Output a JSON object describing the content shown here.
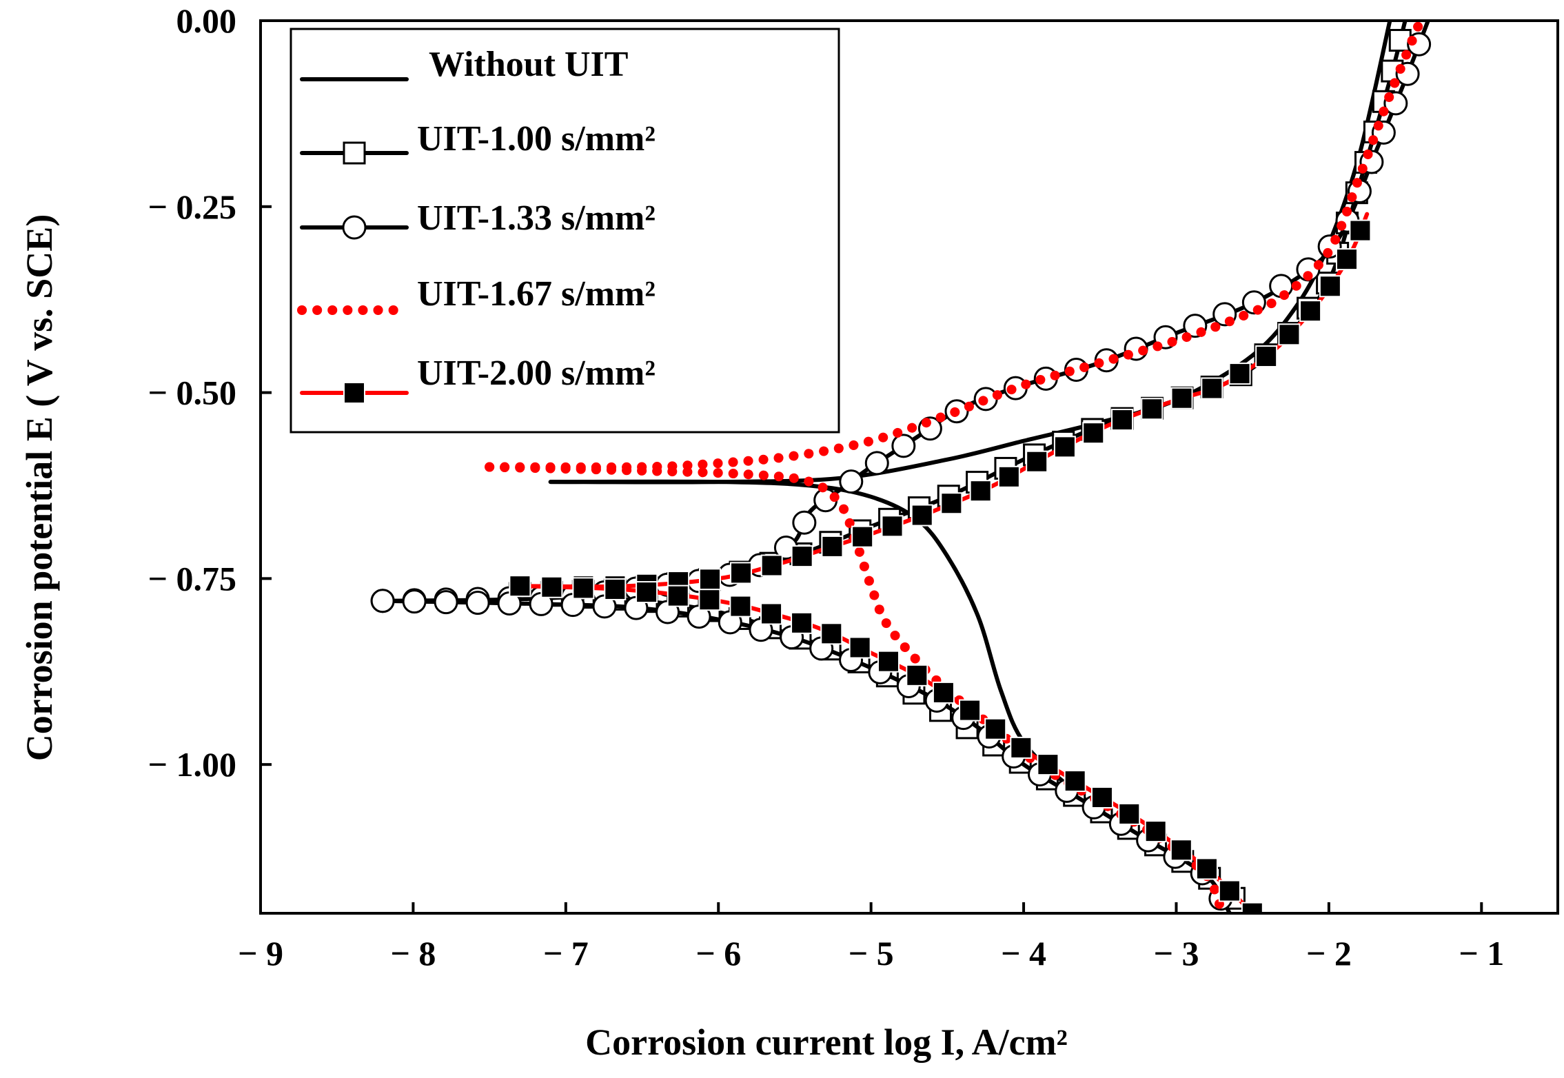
{
  "chart_data": {
    "type": "line",
    "title": "",
    "xlabel": "Corrosion current log I, A/cm²",
    "ylabel": "Corrosion potential E ( V vs. SCE)",
    "xlim": [
      -9,
      -0.5
    ],
    "ylim": [
      -1.2,
      0.0
    ],
    "grid": false,
    "legend_position": "top-left",
    "x_ticks": [
      -9,
      -8,
      -7,
      -6,
      -5,
      -4,
      -3,
      -2,
      -1
    ],
    "x_tick_labels": [
      "− 9",
      "− 8",
      "− 7",
      "− 6",
      "− 5",
      "− 4",
      "− 3",
      "− 2",
      "− 1"
    ],
    "y_ticks": [
      0.0,
      -0.25,
      -0.5,
      -0.75,
      -1.0
    ],
    "y_tick_labels": [
      "0.00",
      "− 0.25",
      "− 0.50",
      "− 0.75",
      "− 1.00"
    ],
    "series": [
      {
        "name": "Without UIT",
        "color": "#000000",
        "line_style": "solid",
        "marker": "none",
        "anodic": [
          [
            -7.1,
            -0.62
          ],
          [
            -6.0,
            -0.62
          ],
          [
            -5.2,
            -0.615
          ],
          [
            -4.5,
            -0.59
          ],
          [
            -4.0,
            -0.565
          ],
          [
            -3.5,
            -0.54
          ],
          [
            -3.0,
            -0.51
          ],
          [
            -2.5,
            -0.45
          ],
          [
            -2.2,
            -0.38
          ],
          [
            -2.0,
            -0.3
          ],
          [
            -1.8,
            -0.18
          ],
          [
            -1.6,
            0.0
          ]
        ],
        "cathodic": [
          [
            -7.1,
            -0.62
          ],
          [
            -6.0,
            -0.62
          ],
          [
            -5.4,
            -0.625
          ],
          [
            -5.0,
            -0.64
          ],
          [
            -4.7,
            -0.67
          ],
          [
            -4.5,
            -0.72
          ],
          [
            -4.3,
            -0.8
          ],
          [
            -4.15,
            -0.9
          ],
          [
            -4.0,
            -0.97
          ],
          [
            -3.7,
            -1.03
          ],
          [
            -3.3,
            -1.09
          ],
          [
            -2.8,
            -1.15
          ],
          [
            -2.5,
            -1.2
          ]
        ]
      },
      {
        "name": "UIT-1.00 s/mm²",
        "color": "#000000",
        "line_style": "solid",
        "marker": "open-square",
        "anodic": [
          [
            -7.3,
            -0.77
          ],
          [
            -6.6,
            -0.765
          ],
          [
            -6.0,
            -0.75
          ],
          [
            -5.5,
            -0.72
          ],
          [
            -5.0,
            -0.68
          ],
          [
            -4.5,
            -0.64
          ],
          [
            -4.0,
            -0.59
          ],
          [
            -3.5,
            -0.545
          ],
          [
            -3.0,
            -0.51
          ],
          [
            -2.6,
            -0.48
          ],
          [
            -2.3,
            -0.43
          ],
          [
            -2.0,
            -0.35
          ],
          [
            -1.8,
            -0.22
          ],
          [
            -1.6,
            -0.08
          ],
          [
            -1.5,
            0.0
          ]
        ],
        "cathodic": [
          [
            -7.3,
            -0.77
          ],
          [
            -6.5,
            -0.78
          ],
          [
            -6.0,
            -0.795
          ],
          [
            -5.6,
            -0.82
          ],
          [
            -5.2,
            -0.85
          ],
          [
            -4.9,
            -0.88
          ],
          [
            -4.6,
            -0.92
          ],
          [
            -4.3,
            -0.96
          ],
          [
            -4.0,
            -1.0
          ],
          [
            -3.6,
            -1.05
          ],
          [
            -3.2,
            -1.1
          ],
          [
            -2.8,
            -1.15
          ],
          [
            -2.5,
            -1.2
          ]
        ]
      },
      {
        "name": "UIT-1.33 s/mm²",
        "color": "#000000",
        "line_style": "solid",
        "marker": "open-circle",
        "anodic": [
          [
            -8.2,
            -0.78
          ],
          [
            -7.0,
            -0.775
          ],
          [
            -6.0,
            -0.75
          ],
          [
            -5.7,
            -0.73
          ],
          [
            -5.5,
            -0.7
          ],
          [
            -5.4,
            -0.66
          ],
          [
            -5.2,
            -0.63
          ],
          [
            -5.0,
            -0.6
          ],
          [
            -4.7,
            -0.56
          ],
          [
            -4.4,
            -0.52
          ],
          [
            -4.0,
            -0.49
          ],
          [
            -3.5,
            -0.46
          ],
          [
            -3.0,
            -0.42
          ],
          [
            -2.5,
            -0.38
          ],
          [
            -2.1,
            -0.33
          ],
          [
            -1.9,
            -0.28
          ],
          [
            -1.7,
            -0.18
          ],
          [
            -1.5,
            -0.08
          ],
          [
            -1.35,
            0.0
          ]
        ],
        "cathodic": [
          [
            -8.2,
            -0.78
          ],
          [
            -7.0,
            -0.785
          ],
          [
            -6.5,
            -0.79
          ],
          [
            -6.0,
            -0.805
          ],
          [
            -5.5,
            -0.83
          ],
          [
            -5.0,
            -0.87
          ],
          [
            -4.6,
            -0.91
          ],
          [
            -4.3,
            -0.95
          ],
          [
            -4.0,
            -1.0
          ],
          [
            -3.6,
            -1.05
          ],
          [
            -3.2,
            -1.1
          ],
          [
            -2.8,
            -1.15
          ],
          [
            -2.65,
            -1.2
          ]
        ]
      },
      {
        "name": "UIT-1.67 s/mm²",
        "color": "#ff0000",
        "line_style": "dotted",
        "marker": "none",
        "anodic": [
          [
            -7.5,
            -0.6
          ],
          [
            -6.5,
            -0.6
          ],
          [
            -6.0,
            -0.595
          ],
          [
            -5.5,
            -0.585
          ],
          [
            -5.0,
            -0.565
          ],
          [
            -4.5,
            -0.53
          ],
          [
            -4.0,
            -0.49
          ],
          [
            -3.5,
            -0.46
          ],
          [
            -3.0,
            -0.43
          ],
          [
            -2.6,
            -0.4
          ],
          [
            -2.3,
            -0.37
          ],
          [
            -2.0,
            -0.31
          ],
          [
            -1.8,
            -0.21
          ],
          [
            -1.6,
            -0.1
          ],
          [
            -1.4,
            0.0
          ]
        ],
        "cathodic": [
          [
            -7.5,
            -0.6
          ],
          [
            -6.5,
            -0.605
          ],
          [
            -5.8,
            -0.61
          ],
          [
            -5.4,
            -0.62
          ],
          [
            -5.2,
            -0.65
          ],
          [
            -5.1,
            -0.7
          ],
          [
            -5.0,
            -0.76
          ],
          [
            -4.9,
            -0.81
          ],
          [
            -4.7,
            -0.86
          ],
          [
            -4.5,
            -0.9
          ],
          [
            -4.2,
            -0.95
          ],
          [
            -3.9,
            -1.0
          ],
          [
            -3.5,
            -1.05
          ],
          [
            -3.1,
            -1.1
          ],
          [
            -2.8,
            -1.15
          ],
          [
            -2.7,
            -1.2
          ]
        ]
      },
      {
        "name": "UIT-2.00 s/mm²",
        "color": "#ff0000",
        "line_style": "solid",
        "marker": "filled-square",
        "anodic": [
          [
            -7.3,
            -0.76
          ],
          [
            -6.6,
            -0.76
          ],
          [
            -6.0,
            -0.75
          ],
          [
            -5.6,
            -0.73
          ],
          [
            -5.3,
            -0.71
          ],
          [
            -5.0,
            -0.69
          ],
          [
            -4.6,
            -0.66
          ],
          [
            -4.2,
            -0.625
          ],
          [
            -3.8,
            -0.58
          ],
          [
            -3.4,
            -0.54
          ],
          [
            -3.0,
            -0.51
          ],
          [
            -2.7,
            -0.49
          ],
          [
            -2.4,
            -0.45
          ],
          [
            -2.2,
            -0.41
          ],
          [
            -2.0,
            -0.36
          ],
          [
            -1.85,
            -0.31
          ],
          [
            -1.75,
            -0.26
          ]
        ],
        "cathodic": [
          [
            -7.3,
            -0.76
          ],
          [
            -6.6,
            -0.765
          ],
          [
            -6.0,
            -0.78
          ],
          [
            -5.6,
            -0.8
          ],
          [
            -5.3,
            -0.82
          ],
          [
            -5.0,
            -0.85
          ],
          [
            -4.7,
            -0.88
          ],
          [
            -4.4,
            -0.92
          ],
          [
            -4.0,
            -0.98
          ],
          [
            -3.6,
            -1.03
          ],
          [
            -3.2,
            -1.08
          ],
          [
            -2.8,
            -1.14
          ],
          [
            -2.5,
            -1.2
          ]
        ]
      }
    ]
  }
}
